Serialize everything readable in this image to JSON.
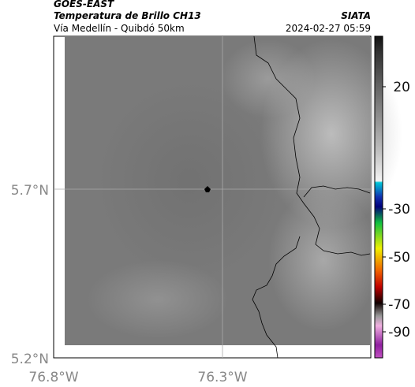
{
  "header": {
    "satellite": "GOES-EAST",
    "product": "Temperatura de Brillo CH13",
    "region": "Vía Medellín - Quibdó 50km",
    "agency": "SIATA",
    "timestamp": "2024-02-27 05:59"
  },
  "map": {
    "lat_labels": [
      "5.7°N",
      "5.2°N"
    ],
    "lon_labels": [
      "76.8°W",
      "76.3°W"
    ]
  },
  "colorbar": {
    "tick_labels": [
      "20",
      "-30",
      "-50",
      "-70",
      "-90"
    ]
  }
}
